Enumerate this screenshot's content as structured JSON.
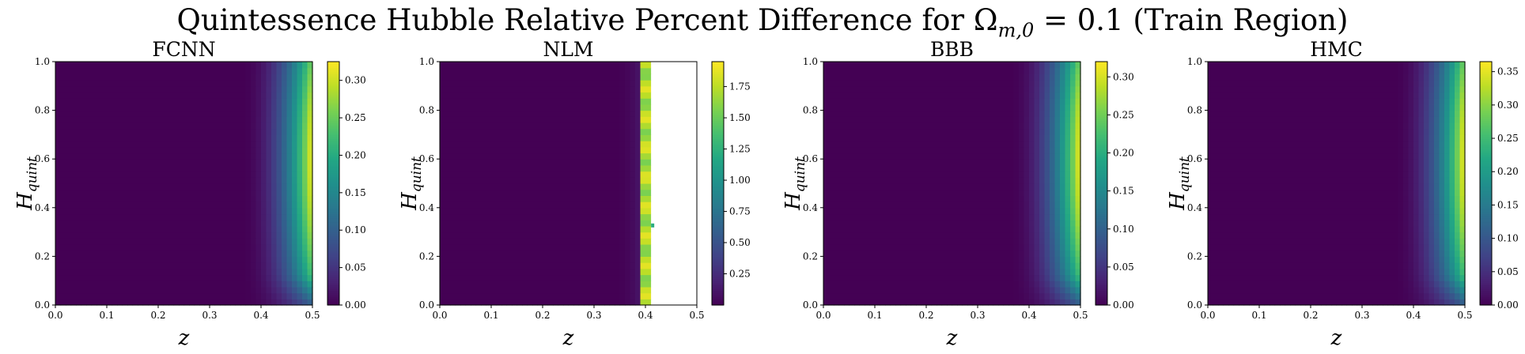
{
  "figure": {
    "suptitle": "Quintessence Hubble Relative Percent Difference for Ωm,0 = 0.1 (Train Region)",
    "suptitle_parts": {
      "prefix": "Quintessence Hubble Relative Percent Difference for Ω",
      "sub": "m,0",
      "suffix": " = 0.1 (Train Region)"
    }
  },
  "chart_data": [
    {
      "type": "heatmap",
      "title": "FCNN",
      "xlabel": "z",
      "ylabel": "H",
      "ylabel_sub": "quint",
      "xlim": [
        0.0,
        0.5
      ],
      "ylim": [
        0.0,
        1.0
      ],
      "xticks": [
        "0.0",
        "0.1",
        "0.2",
        "0.3",
        "0.4",
        "0.5"
      ],
      "yticks": [
        "0.0",
        "0.2",
        "0.4",
        "0.6",
        "0.8",
        "1.0"
      ],
      "colormap": "viridis",
      "colorbar": {
        "min": 0.0,
        "max": 0.325,
        "ticks": [
          "0.00",
          "0.05",
          "0.10",
          "0.15",
          "0.20",
          "0.25",
          "0.30"
        ]
      },
      "peak_value": 0.325,
      "peak_at": {
        "z": 0.5,
        "H_quint": 0.6
      },
      "onset_z": 0.36
    },
    {
      "type": "heatmap",
      "title": "NLM",
      "xlabel": "z",
      "ylabel": "H",
      "ylabel_sub": "quint",
      "xlim": [
        0.0,
        0.5
      ],
      "ylim": [
        0.0,
        1.0
      ],
      "xticks": [
        "0.0",
        "0.1",
        "0.2",
        "0.3",
        "0.4",
        "0.5"
      ],
      "yticks": [
        "0.0",
        "0.2",
        "0.4",
        "0.6",
        "0.8",
        "1.0"
      ],
      "colormap": "viridis",
      "colorbar": {
        "min": 0.0,
        "max": 1.95,
        "ticks": [
          "0.25",
          "0.50",
          "0.75",
          "1.00",
          "1.25",
          "1.50",
          "1.75"
        ]
      },
      "blank_region_from_z": 0.41,
      "edge_band": {
        "z_min": 0.39,
        "z_max": 0.41
      },
      "onset_z": 0.34
    },
    {
      "type": "heatmap",
      "title": "BBB",
      "xlabel": "z",
      "ylabel": "H",
      "ylabel_sub": "quint",
      "xlim": [
        0.0,
        0.5
      ],
      "ylim": [
        0.0,
        1.0
      ],
      "xticks": [
        "0.0",
        "0.1",
        "0.2",
        "0.3",
        "0.4",
        "0.5"
      ],
      "yticks": [
        "0.0",
        "0.2",
        "0.4",
        "0.6",
        "0.8",
        "1.0"
      ],
      "colormap": "viridis",
      "colorbar": {
        "min": 0.0,
        "max": 0.32,
        "ticks": [
          "0.00",
          "0.05",
          "0.10",
          "0.15",
          "0.20",
          "0.25",
          "0.30"
        ]
      },
      "peak_value": 0.32,
      "peak_at": {
        "z": 0.5,
        "H_quint": 0.6
      },
      "onset_z": 0.36
    },
    {
      "type": "heatmap",
      "title": "HMC",
      "xlabel": "z",
      "ylabel": "H",
      "ylabel_sub": "quint",
      "xlim": [
        0.0,
        0.5
      ],
      "ylim": [
        0.0,
        1.0
      ],
      "xticks": [
        "0.0",
        "0.1",
        "0.2",
        "0.3",
        "0.4",
        "0.5"
      ],
      "yticks": [
        "0.0",
        "0.2",
        "0.4",
        "0.6",
        "0.8",
        "1.0"
      ],
      "colormap": "viridis",
      "colorbar": {
        "min": 0.0,
        "max": 0.365,
        "ticks": [
          "0.00",
          "0.05",
          "0.10",
          "0.15",
          "0.20",
          "0.25",
          "0.30",
          "0.35"
        ]
      },
      "peak_value": 0.365,
      "peak_at": {
        "z": 0.5,
        "H_quint": 0.6
      },
      "onset_z": 0.36
    }
  ]
}
